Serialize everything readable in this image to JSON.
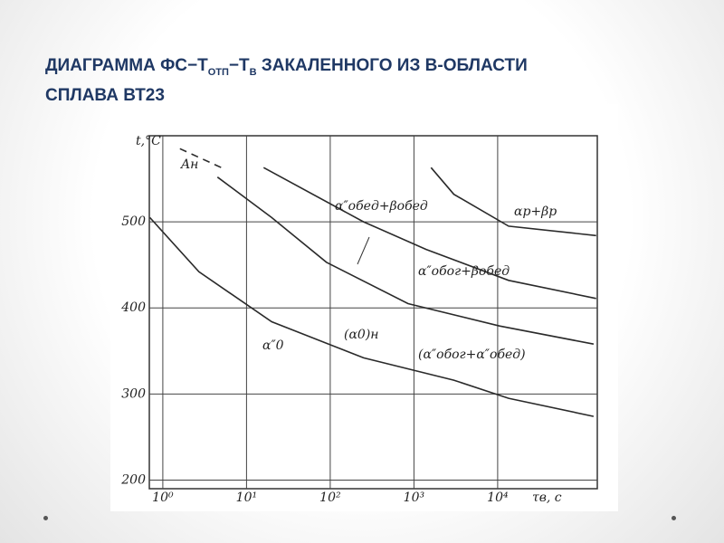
{
  "header": {
    "title_parts": [
      "ДИАГРАММА ФС−T",
      "ОТП",
      "−T",
      "В",
      " ЗАКАЛЕННОГО ИЗ В-ОБЛАСТИ",
      "СПЛАВА ВТ23"
    ]
  },
  "chart_data": {
    "type": "line",
    "y_label": "t,°C",
    "x_label": "τв, с",
    "log_x": true,
    "grid": true,
    "xlim": [
      0.69,
      155000
    ],
    "ylim": [
      190,
      600
    ],
    "xticks": [
      {
        "value": 1,
        "label": "10⁰"
      },
      {
        "value": 10,
        "label": "10¹"
      },
      {
        "value": 100,
        "label": "10²"
      },
      {
        "value": 1000,
        "label": "10³"
      },
      {
        "value": 10000,
        "label": "10⁴"
      }
    ],
    "yticks": [
      200,
      300,
      400,
      500
    ],
    "series": [
      {
        "color": "#2a2a2a",
        "x": [
          16,
          250,
          1400,
          13500,
          150000
        ],
        "values": [
          563,
          500,
          468,
          432,
          411
        ]
      },
      {
        "color": "#2a2a2a",
        "x": [
          4.5,
          20,
          90,
          850,
          10500,
          140000
        ],
        "values": [
          552,
          505,
          453,
          405,
          379,
          358
        ]
      },
      {
        "color": "#2a2a2a",
        "x": [
          1600,
          3000,
          13500,
          150000
        ],
        "values": [
          563,
          532,
          495,
          484
        ]
      },
      {
        "color": "#2a2a2a",
        "x": [
          0.7,
          2.7,
          20,
          250,
          3000,
          13500,
          140000
        ],
        "values": [
          505,
          442,
          384,
          342,
          316,
          295,
          274
        ]
      },
      {
        "color": "#2a2a2a",
        "dashed": true,
        "x": [
          1.6,
          5
        ],
        "values": [
          585,
          563
        ]
      }
    ],
    "annotations": [
      "Aн",
      "α″обед+βобед",
      "αр+βр",
      "α″обог+βобед",
      "(α0)н",
      "α″0",
      "(α″обог+α″обед)"
    ]
  }
}
